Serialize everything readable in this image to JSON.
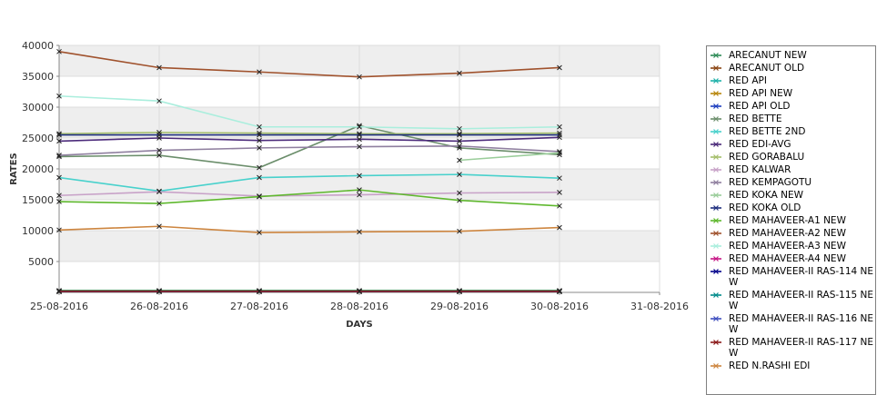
{
  "chart_data": {
    "type": "line",
    "title": "",
    "xlabel": "DAYS",
    "ylabel": "RATES",
    "x_ticks": [
      "25-08-2016",
      "26-08-2016",
      "27-08-2016",
      "28-08-2016",
      "29-08-2016",
      "30-08-2016",
      "31-08-2016"
    ],
    "y_ticks": [
      5000,
      10000,
      15000,
      20000,
      25000,
      30000,
      35000,
      40000
    ],
    "ylim": [
      0,
      40000
    ],
    "grid": true,
    "legend_position": "right",
    "series": [
      {
        "name": "ARECANUT NEW",
        "color": "#2e8b57",
        "values": [
          300,
          300,
          300,
          300,
          300,
          300
        ]
      },
      {
        "name": "ARECANUT OLD",
        "color": "#8b4513",
        "values": [
          200,
          200,
          200,
          200,
          200,
          200
        ]
      },
      {
        "name": "RED API",
        "color": "#20b2aa",
        "values": [
          150,
          150,
          150,
          150,
          150,
          150
        ]
      },
      {
        "name": "RED API NEW",
        "color": "#b8860b",
        "values": [
          150,
          150,
          150,
          150,
          150,
          150
        ]
      },
      {
        "name": "RED API OLD",
        "color": "#1e3fbf",
        "values": [
          150,
          150,
          150,
          150,
          150,
          150
        ]
      },
      {
        "name": "RED BETTE",
        "color": "#6b8e6b",
        "values": [
          22000,
          22200,
          20200,
          27000,
          23400,
          22300
        ]
      },
      {
        "name": "RED BETTE 2ND",
        "color": "#48d1cc",
        "values": [
          18600,
          16400,
          18600,
          18900,
          19100,
          18500
        ]
      },
      {
        "name": "RED EDI-AVG",
        "color": "#4b2a7a",
        "values": [
          24500,
          25000,
          24600,
          24800,
          24500,
          25100
        ]
      },
      {
        "name": "RED GORABALU",
        "color": "#a4be6a",
        "values": [
          25700,
          25900,
          25800,
          25700,
          25700,
          25800
        ]
      },
      {
        "name": "RED KALWAR",
        "color": "#c8a2c8",
        "values": [
          15700,
          16300,
          15600,
          15800,
          16100,
          16200
        ]
      },
      {
        "name": "RED KEMPAGOTU",
        "color": "#8f7f9f",
        "values": [
          22200,
          23000,
          23400,
          23600,
          23700,
          22800
        ]
      },
      {
        "name": "RED KOKA NEW",
        "color": "#9acd9a",
        "values": [
          null,
          null,
          null,
          null,
          21400,
          22600
        ]
      },
      {
        "name": "RED KOKA OLD",
        "color": "#1f2f7f",
        "values": [
          25500,
          25500,
          25500,
          25500,
          25500,
          25500
        ]
      },
      {
        "name": "RED MAHAVEER-A1 NEW",
        "color": "#5fb82e",
        "values": [
          14700,
          14400,
          15500,
          16600,
          14900,
          14000
        ]
      },
      {
        "name": "RED MAHAVEER-A2 NEW",
        "color": "#a0522d",
        "values": [
          39000,
          36400,
          35700,
          34900,
          35500,
          36400
        ]
      },
      {
        "name": "RED MAHAVEER-A3 NEW",
        "color": "#aaeedd",
        "values": [
          31800,
          31000,
          26800,
          26800,
          26500,
          26800
        ]
      },
      {
        "name": "RED MAHAVEER-A4 NEW",
        "color": "#c71585",
        "values": [
          150,
          150,
          150,
          150,
          150,
          150
        ]
      },
      {
        "name": "RED MAHAVEER-II RAS-114 NEW",
        "color": "#00008b",
        "values": [
          150,
          150,
          150,
          150,
          150,
          150
        ]
      },
      {
        "name": "RED MAHAVEER-II RAS-115 NEW",
        "color": "#008b8b",
        "values": [
          150,
          150,
          150,
          150,
          150,
          150
        ]
      },
      {
        "name": "RED MAHAVEER-II RAS-116 NEW",
        "color": "#3f4fbf",
        "values": [
          150,
          150,
          150,
          150,
          150,
          150
        ]
      },
      {
        "name": "RED MAHAVEER-II RAS-117 NEW",
        "color": "#8b1a1a",
        "values": [
          150,
          150,
          150,
          150,
          150,
          150
        ]
      },
      {
        "name": "RED N.RASHI EDI",
        "color": "#cd853f",
        "values": [
          10100,
          10700,
          9700,
          9800,
          9900,
          10500
        ]
      }
    ]
  },
  "legend": {
    "items": [
      "ARECANUT NEW",
      "ARECANUT OLD",
      "RED API",
      "RED API NEW",
      "RED API OLD",
      "RED BETTE",
      "RED BETTE 2ND",
      "RED EDI-AVG",
      "RED GORABALU",
      "RED KALWAR",
      "RED KEMPAGOTU",
      "RED KOKA NEW",
      "RED KOKA OLD",
      "RED MAHAVEER-A1 NEW",
      "RED MAHAVEER-A2 NEW",
      "RED MAHAVEER-A3 NEW",
      "RED MAHAVEER-A4 NEW",
      "RED MAHAVEER-II RAS-114 NEW",
      "RED MAHAVEER-II RAS-115 NEW",
      "RED MAHAVEER-II RAS-116 NEW",
      "RED MAHAVEER-II RAS-117 NEW",
      "RED N.RASHI EDI"
    ]
  }
}
